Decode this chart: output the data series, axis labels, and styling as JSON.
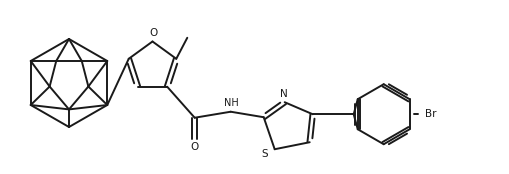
{
  "bg_color": "#ffffff",
  "line_color": "#1a1a1a",
  "line_width": 1.4,
  "figsize": [
    5.1,
    1.74
  ],
  "dpi": 100,
  "xlim": [
    0,
    10.2
  ],
  "ylim": [
    0,
    3.48
  ]
}
